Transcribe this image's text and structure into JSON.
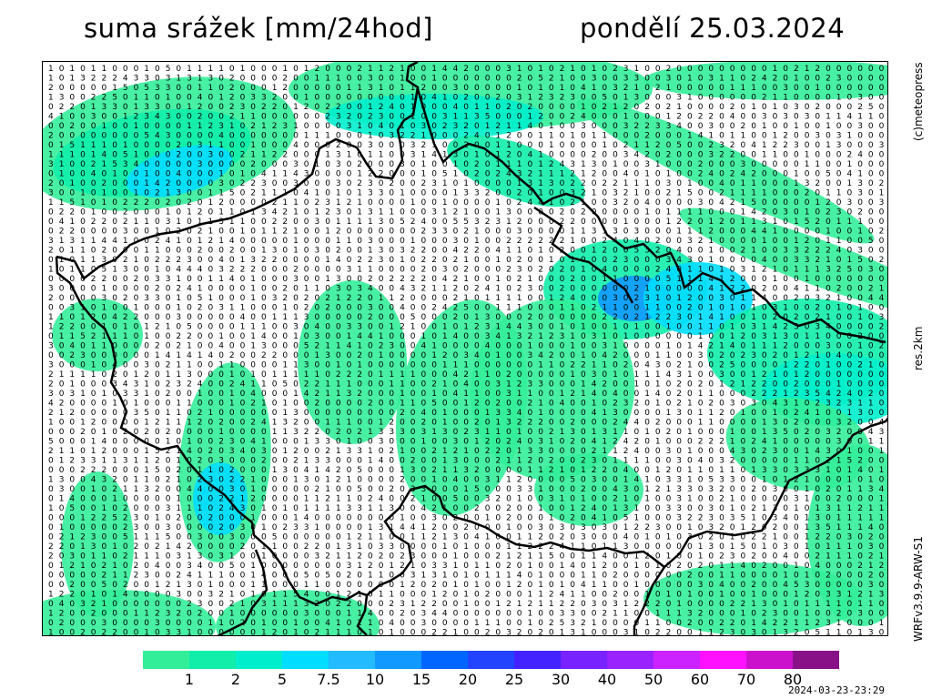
{
  "header": {
    "title": "suma srážek [mm/24hod]",
    "date": "pondělí 25.03.2024"
  },
  "side_labels": {
    "credit": "(c)meteopress",
    "resolution": "res.2km",
    "model": "WRFv3.9.9-ARW-S1"
  },
  "legend": {
    "ticks": [
      "1",
      "2",
      "5",
      "7.5",
      "10",
      "15",
      "20",
      "25",
      "30",
      "40",
      "50",
      "60",
      "70",
      "80"
    ],
    "colors": [
      "#33ee99",
      "#11eeaa",
      "#00eecc",
      "#00ddff",
      "#22bbff",
      "#1199ff",
      "#0066ff",
      "#2244ff",
      "#4422ff",
      "#7722ff",
      "#9922ff",
      "#cc22ff",
      "#ff11ff",
      "#cc11cc",
      "#881188"
    ]
  },
  "timestamp": "2024-03-23-23:29",
  "map": {
    "background": "#ffffff",
    "label_color": "#000000"
  }
}
